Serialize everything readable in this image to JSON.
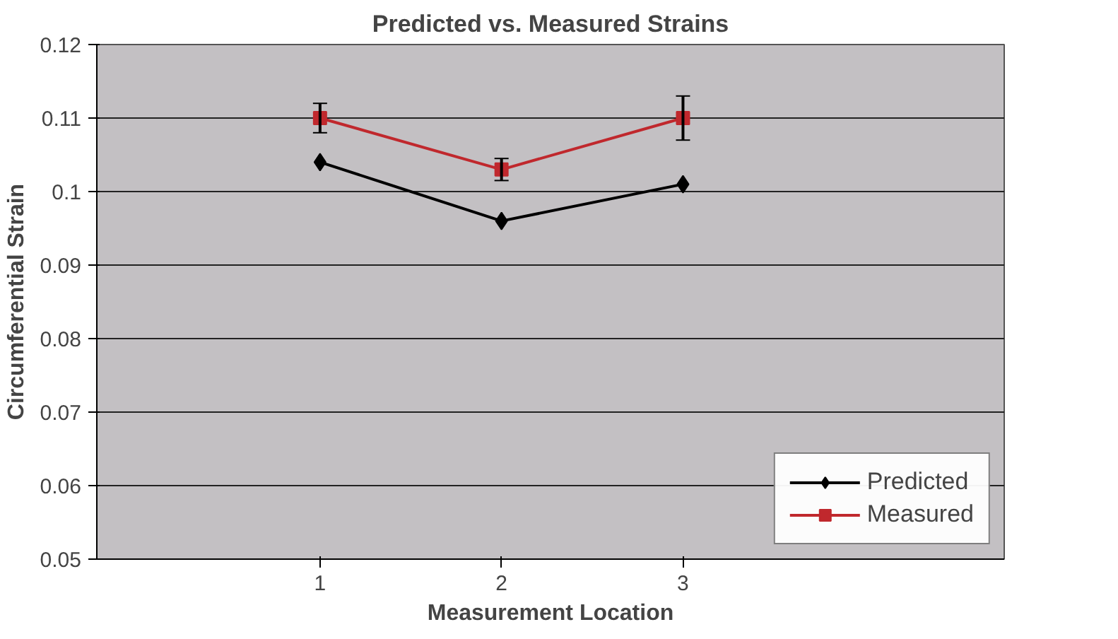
{
  "chart_data": {
    "type": "line",
    "title": "Predicted vs. Measured Strains",
    "xlabel": "Measurement Location",
    "ylabel": "Circumferential Strain",
    "categories": [
      "1",
      "2",
      "3"
    ],
    "series": [
      {
        "name": "Predicted",
        "color": "#000000",
        "values": [
          0.104,
          0.096,
          0.101
        ],
        "marker": "diamond"
      },
      {
        "name": "Measured",
        "color": "#c0282d",
        "values": [
          0.11,
          0.103,
          0.11
        ],
        "marker": "square",
        "errors": [
          0.002,
          0.0015,
          0.003
        ]
      }
    ],
    "ylim": [
      0.05,
      0.12
    ],
    "yticks": [
      0.05,
      0.06,
      0.07,
      0.08,
      0.09,
      0.1,
      0.11,
      0.12
    ],
    "grid": "y",
    "legend": "bottom right",
    "line_style": "solid"
  }
}
